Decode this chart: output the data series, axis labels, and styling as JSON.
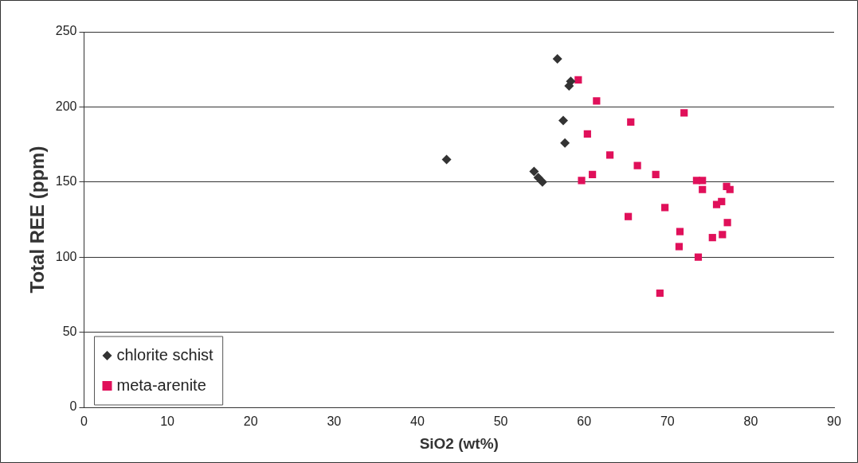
{
  "chart_data": {
    "type": "scatter",
    "xlabel": "SiO2 (wt%)",
    "ylabel": "Total REE (ppm)",
    "xlim": [
      0,
      90
    ],
    "xticks": [
      0,
      10,
      20,
      30,
      40,
      50,
      60,
      70,
      80,
      90
    ],
    "ylim": [
      0,
      250
    ],
    "yticks": [
      0,
      50,
      100,
      150,
      200,
      250
    ],
    "grid": "y",
    "legend": "bottom left",
    "series": [
      {
        "name": "chlorite schist",
        "color": "#333333",
        "marker": "diamond",
        "x": [
          56.8,
          58.4,
          58.2,
          57.5,
          57.7,
          43.5,
          54.0,
          54.5,
          55.0
        ],
        "values": [
          232,
          217,
          214,
          191,
          176,
          165,
          157,
          153,
          150
        ]
      },
      {
        "name": "meta-arenite",
        "color": "#e0105a",
        "marker": "square",
        "x": [
          59.3,
          61.5,
          60.4,
          63.1,
          61.0,
          59.7,
          72.0,
          65.6,
          66.4,
          68.6,
          73.5,
          74.2,
          74.2,
          77.1,
          77.5,
          76.5,
          75.9,
          69.7,
          65.3,
          77.2,
          76.6,
          75.4,
          71.5,
          71.4,
          73.7,
          69.1
        ],
        "values": [
          218,
          204,
          182,
          168,
          155,
          151,
          196,
          190,
          161,
          155,
          151,
          151,
          145,
          147,
          145,
          137,
          135,
          133,
          127,
          123,
          115,
          113,
          117,
          107,
          100,
          76
        ]
      }
    ]
  }
}
